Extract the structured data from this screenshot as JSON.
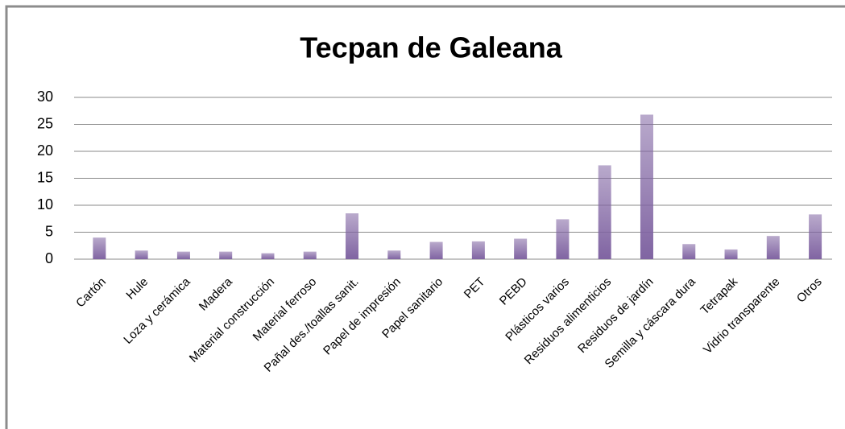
{
  "chart_data": {
    "type": "bar",
    "title": "Tecpan de Galeana",
    "categories": [
      "Cartón",
      "Hule",
      "Loza y cerámica",
      "Madera",
      "Material construcción",
      "Material ferroso",
      "Pañal des./toallas sanit.",
      "Papel de impresión",
      "Papel sanitario",
      "PET",
      "PEBD",
      "Plásticos varios",
      "Residuos alimenticios",
      "Residuos de jardín",
      "Semilla y cáscara dura",
      "Tetrapak",
      "Vidrio transparente",
      "Otros"
    ],
    "values": [
      4.0,
      1.6,
      1.4,
      1.4,
      1.1,
      1.4,
      8.5,
      1.6,
      3.2,
      3.3,
      3.8,
      7.4,
      17.4,
      26.8,
      2.8,
      1.8,
      4.3,
      8.3
    ],
    "color": "#8064a2",
    "ylim": [
      0,
      30
    ],
    "yticks": [
      0,
      5,
      10,
      15,
      20,
      25,
      30
    ],
    "grid": true
  }
}
